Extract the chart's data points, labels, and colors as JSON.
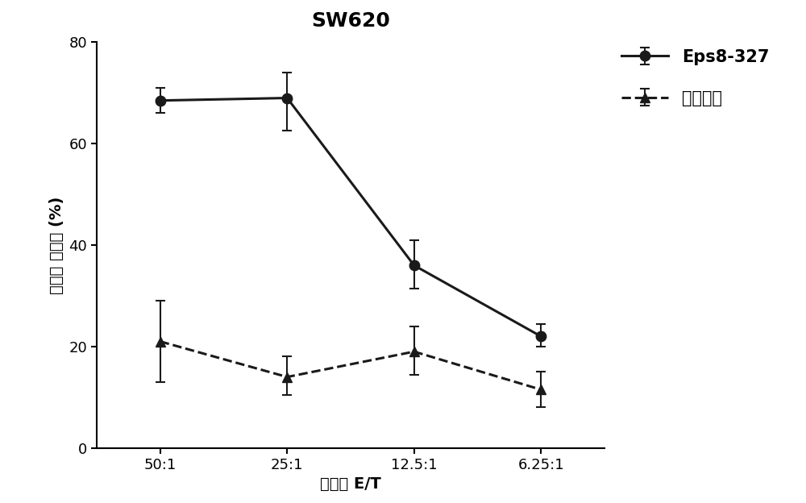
{
  "title": "SW620",
  "xlabel": "效靶比 E/T",
  "ylabel": "特异性 杀伤率 (%)",
  "x_labels": [
    "50:1",
    "25:1",
    "12.5:1",
    "6.25:1"
  ],
  "x_positions": [
    0,
    1,
    2,
    3
  ],
  "series": [
    {
      "name": "Eps8-327",
      "y": [
        68.5,
        69.0,
        36.0,
        22.0
      ],
      "yerr_upper": [
        2.5,
        5.0,
        5.0,
        2.5
      ],
      "yerr_lower": [
        2.5,
        6.5,
        4.5,
        2.0
      ],
      "linestyle": "-",
      "marker": "o",
      "color": "#1a1a1a",
      "linewidth": 2.2,
      "markersize": 9,
      "markerfacecolor": "#1a1a1a"
    },
    {
      "name": "溶剂对照",
      "y": [
        21.0,
        14.0,
        19.0,
        11.5
      ],
      "yerr_upper": [
        8.0,
        4.0,
        5.0,
        3.5
      ],
      "yerr_lower": [
        8.0,
        3.5,
        4.5,
        3.5
      ],
      "linestyle": "--",
      "marker": "^",
      "color": "#1a1a1a",
      "linewidth": 2.2,
      "markersize": 9,
      "markerfacecolor": "#1a1a1a"
    }
  ],
  "ylim": [
    0,
    80
  ],
  "yticks": [
    0,
    20,
    40,
    60,
    80
  ],
  "background_color": "#ffffff",
  "title_fontsize": 18,
  "label_fontsize": 14,
  "tick_fontsize": 13,
  "legend_fontsize": 15,
  "capsize": 4,
  "elinewidth": 1.5
}
